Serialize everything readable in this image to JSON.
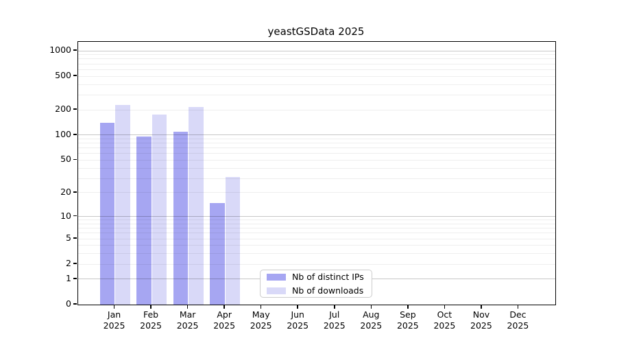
{
  "chart_data": {
    "type": "bar",
    "title": "yeastGSData 2025",
    "categories": [
      "Jan",
      "Feb",
      "Mar",
      "Apr",
      "May",
      "Jun",
      "Jul",
      "Aug",
      "Sep",
      "Oct",
      "Nov",
      "Dec"
    ],
    "year_label": "2025",
    "series": [
      {
        "name": "Nb of distinct IPs",
        "color": "#a6a6f2",
        "values": [
          140,
          96,
          110,
          15,
          null,
          null,
          null,
          null,
          null,
          null,
          null,
          null
        ]
      },
      {
        "name": "Nb of downloads",
        "color": "#d9d9f8",
        "values": [
          228,
          174,
          215,
          31,
          null,
          null,
          null,
          null,
          null,
          null,
          null,
          null
        ]
      }
    ],
    "y_ticks": [
      0,
      1,
      2,
      5,
      10,
      20,
      50,
      100,
      200,
      500,
      1000
    ],
    "yscale": "log10(1+x)",
    "ylim": [
      0,
      1280
    ],
    "grid": "horizontal, minor + major (powers of 10 darker), drawn over bars",
    "legend_position": "inside, lower middle"
  }
}
